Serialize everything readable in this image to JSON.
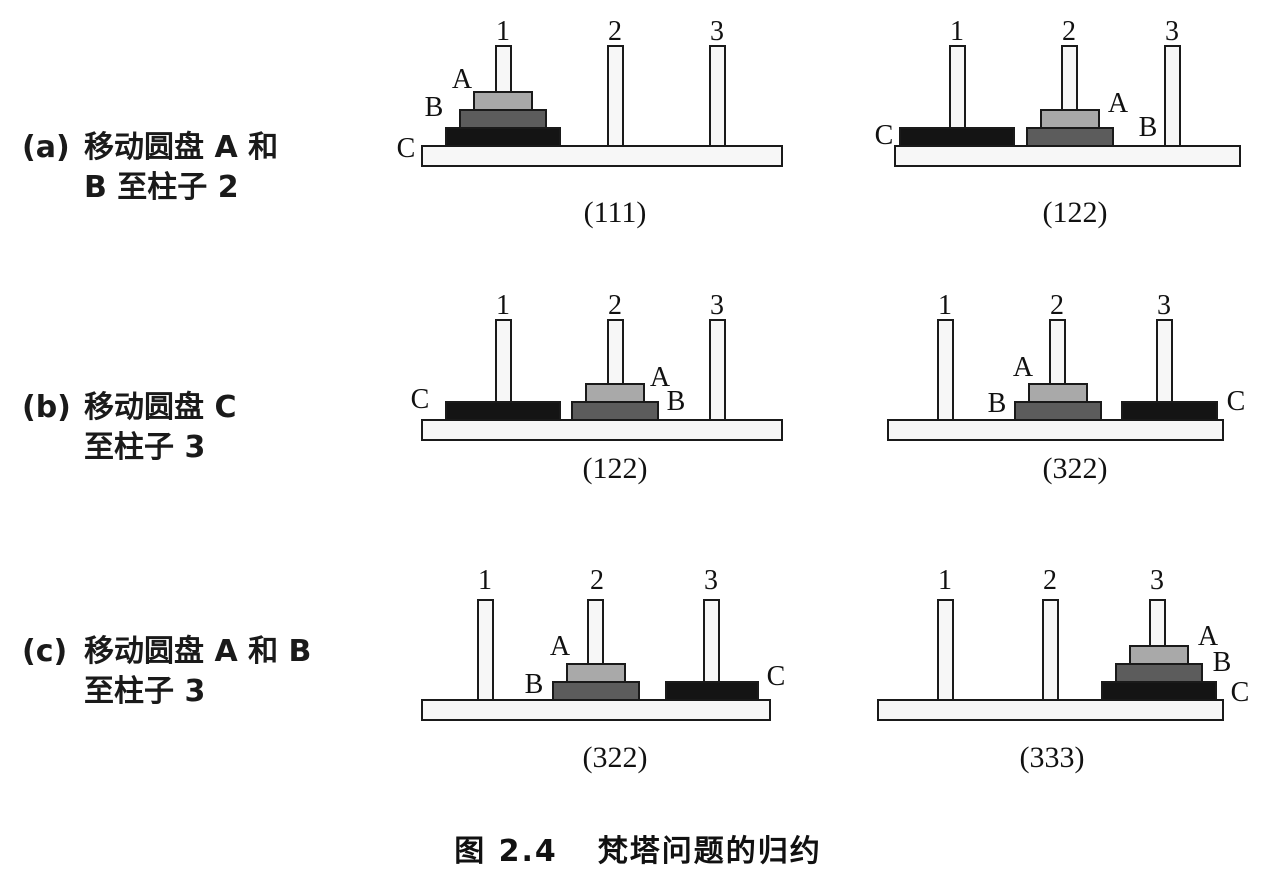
{
  "figure": {
    "caption_number": "图 2.4",
    "caption_title": "梵塔问题的归约"
  },
  "colors": {
    "base_fill": "#f7f7f7",
    "peg_fill": "#f7f7f7",
    "outline": "#1a1a1a",
    "disk_A": "#a9a9a9",
    "disk_B": "#5c5c5c",
    "disk_C": "#141414"
  },
  "rows": [
    {
      "tag": "(a)",
      "line1": "移动圆盘 A 和",
      "line2": "B 至柱子 2",
      "left": {
        "state": "(111)",
        "peg_labels": [
          "1",
          "2",
          "3"
        ],
        "disk_labels": {
          "A": "A",
          "B": "B",
          "C": "C"
        }
      },
      "right": {
        "state": "(122)",
        "peg_labels": [
          "1",
          "2",
          "3"
        ],
        "disk_labels": {
          "A": "A",
          "B": "B",
          "C": "C"
        }
      }
    },
    {
      "tag": "(b)",
      "line1": "移动圆盘 C",
      "line2": "至柱子 3",
      "left": {
        "state": "(122)",
        "peg_labels": [
          "1",
          "2",
          "3"
        ],
        "disk_labels": {
          "A": "A",
          "B": "B",
          "C": "C"
        }
      },
      "right": {
        "state": "(322)",
        "peg_labels": [
          "1",
          "2",
          "3"
        ],
        "disk_labels": {
          "A": "A",
          "B": "B",
          "C": "C"
        }
      }
    },
    {
      "tag": "(c)",
      "line1": "移动圆盘 A 和 B",
      "line2": "至柱子 3",
      "left": {
        "state": "(322)",
        "peg_labels": [
          "1",
          "2",
          "3"
        ],
        "disk_labels": {
          "A": "A",
          "B": "B",
          "C": "C"
        }
      },
      "right": {
        "state": "(333)",
        "peg_labels": [
          "1",
          "2",
          "3"
        ],
        "disk_labels": {
          "A": "A",
          "B": "B",
          "C": "C"
        }
      }
    }
  ]
}
